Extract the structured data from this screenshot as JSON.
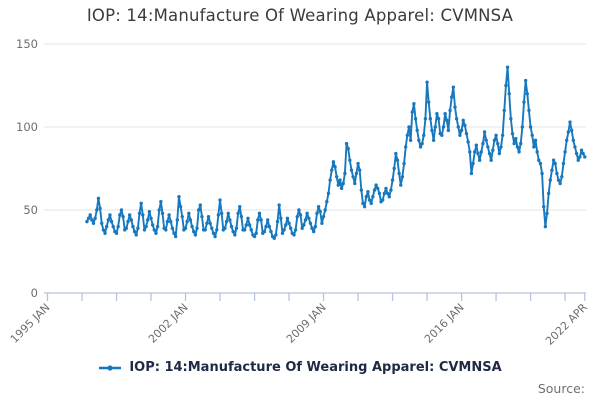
{
  "chart": {
    "title": "IOP: 14:Manufacture Of Wearing Apparel: CVMNSA",
    "legend_label": "IOP: 14:Manufacture Of Wearing Apparel: CVMNSA",
    "source_label": "Source:"
  },
  "colors": {
    "line": "#1778bd",
    "grid": "#e3e3e3",
    "axis": "#b5c3dd",
    "tick_label": "#6e6e6e",
    "title_text": "#3b3b3b",
    "legend_text": "#1d2a45",
    "source_text": "#707070"
  },
  "chart_data": {
    "type": "line",
    "title": "IOP: 14:Manufacture Of Wearing Apparel: CVMNSA",
    "xlabel": "",
    "ylabel": "",
    "grid": "horizontal-only",
    "legend_position": "bottom-center",
    "y_axis": {
      "min": 0,
      "max": 150,
      "ticks": [
        0,
        50,
        100,
        150
      ]
    },
    "x_axis": {
      "start_label": "1995 JAN",
      "end_label": "2022 APR",
      "total_months": 327,
      "minor_tick_every_months": 21,
      "tick_labels": [
        {
          "label": "1995 JAN",
          "month": 0
        },
        {
          "label": "2002 JAN",
          "month": 84
        },
        {
          "label": "2009 JAN",
          "month": 168
        },
        {
          "label": "2016 JAN",
          "month": 252
        },
        {
          "label": "2022 APR",
          "month": 327
        }
      ]
    },
    "series": [
      {
        "name": "IOP: 14:Manufacture Of Wearing Apparel: CVMNSA",
        "frequency": "monthly",
        "start": "1997 JAN",
        "start_month_offset": 24,
        "end": "2022 APR",
        "values": [
          43,
          45,
          47,
          44,
          42,
          45,
          50,
          57,
          51,
          42,
          38,
          36,
          40,
          44,
          47,
          43,
          40,
          37,
          36,
          40,
          47,
          50,
          46,
          38,
          39,
          43,
          47,
          44,
          40,
          37,
          35,
          39,
          48,
          54,
          47,
          38,
          40,
          44,
          49,
          45,
          41,
          38,
          36,
          40,
          50,
          55,
          48,
          39,
          38,
          43,
          47,
          43,
          39,
          36,
          34,
          44,
          58,
          52,
          46,
          38,
          39,
          43,
          48,
          44,
          40,
          37,
          35,
          39,
          50,
          53,
          46,
          38,
          38,
          42,
          46,
          42,
          39,
          36,
          34,
          38,
          47,
          56,
          48,
          38,
          39,
          43,
          48,
          44,
          40,
          37,
          35,
          39,
          48,
          52,
          46,
          38,
          38,
          41,
          45,
          41,
          38,
          35,
          34,
          36,
          44,
          48,
          44,
          36,
          37,
          40,
          44,
          40,
          37,
          34,
          33,
          35,
          43,
          53,
          45,
          36,
          38,
          41,
          45,
          42,
          39,
          36,
          35,
          38,
          46,
          50,
          47,
          39,
          41,
          44,
          48,
          45,
          42,
          39,
          37,
          40,
          48,
          52,
          49,
          42,
          46,
          50,
          55,
          60,
          68,
          74,
          79,
          76,
          70,
          65,
          68,
          63,
          66,
          72,
          90,
          87,
          80,
          74,
          70,
          66,
          72,
          78,
          74,
          62,
          54,
          52,
          58,
          61,
          56,
          54,
          58,
          62,
          65,
          63,
          60,
          55,
          56,
          60,
          63,
          60,
          58,
          62,
          68,
          75,
          84,
          80,
          72,
          65,
          70,
          78,
          88,
          95,
          100,
          92,
          109,
          114,
          105,
          98,
          92,
          88,
          90,
          95,
          105,
          127,
          115,
          105,
          98,
          92,
          100,
          108,
          105,
          96,
          95,
          100,
          108,
          104,
          98,
          110,
          118,
          124,
          112,
          105,
          100,
          95,
          98,
          104,
          101,
          96,
          91,
          85,
          72,
          78,
          85,
          89,
          84,
          80,
          85,
          90,
          97,
          92,
          88,
          84,
          80,
          86,
          92,
          95,
          90,
          84,
          88,
          95,
          110,
          125,
          136,
          120,
          105,
          96,
          90,
          93,
          88,
          85,
          90,
          100,
          115,
          128,
          120,
          110,
          100,
          95,
          88,
          92,
          85,
          80,
          78,
          72,
          52,
          40,
          48,
          60,
          68,
          74,
          80,
          78,
          72,
          68,
          66,
          70,
          78,
          85,
          92,
          97,
          103,
          98,
          92,
          88,
          84,
          80,
          82,
          86,
          84,
          82
        ]
      }
    ]
  }
}
